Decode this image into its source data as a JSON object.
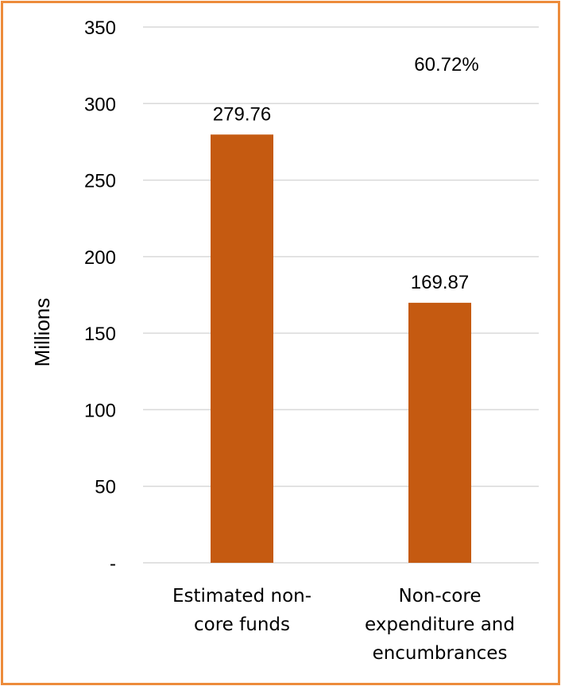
{
  "chart_data": {
    "type": "bar",
    "title": "",
    "xlabel": "",
    "ylabel": "Millions",
    "ylim": [
      0,
      350
    ],
    "yticks": [
      {
        "value": 0,
        "label": "-"
      },
      {
        "value": 50,
        "label": "50"
      },
      {
        "value": 100,
        "label": "100"
      },
      {
        "value": 150,
        "label": "150"
      },
      {
        "value": 200,
        "label": "200"
      },
      {
        "value": 250,
        "label": "250"
      },
      {
        "value": 300,
        "label": "300"
      },
      {
        "value": 350,
        "label": "350"
      }
    ],
    "categories": [
      [
        "Estimated non-",
        "core funds"
      ],
      [
        "Non-core",
        "expenditure and",
        "encumbrances"
      ]
    ],
    "values": [
      279.76,
      169.87
    ],
    "data_labels": [
      "279.76",
      "169.87"
    ],
    "annotation": "60.72%",
    "grid": true,
    "legend": "none",
    "bar_color": "#C55A11",
    "border_color": "#ED8B3A",
    "gridline_color": "#D9D9D9"
  }
}
